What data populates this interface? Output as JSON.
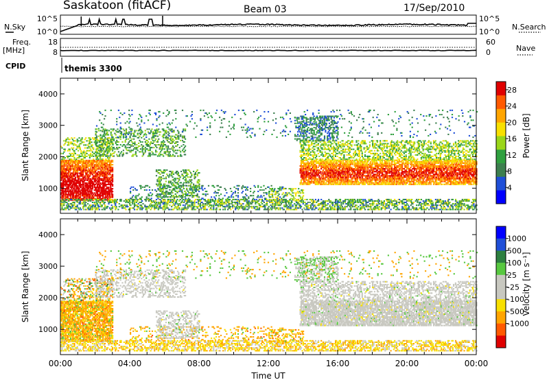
{
  "header": {
    "station": "Saskatoon (fitACF)",
    "beam": "Beam 03",
    "date": "17/Sep/2010"
  },
  "noise_panel": {
    "left_label": "N.Sky",
    "right_label": "N.Search",
    "tick_top": "10^5",
    "tick_bottom": "10^0"
  },
  "freq_panel": {
    "left_label_line1": "Freq.",
    "left_label_line2": "[MHz]",
    "right_label": "Nave",
    "left_ticks": [
      "18",
      "8"
    ],
    "right_ticks": [
      "60",
      "0"
    ]
  },
  "cpid": {
    "label": "CPID",
    "value": "themis 3300"
  },
  "colors": {
    "power": [
      "#0000ff",
      "#1f4fd8",
      "#3d7f4f",
      "#30a040",
      "#9ad61a",
      "#f8e000",
      "#ffa500",
      "#ff5a00",
      "#e00000"
    ],
    "velocity": [
      "#e00000",
      "#ff5a00",
      "#ffa500",
      "#f8e000",
      "#c8c8c0",
      "#c8c8c0",
      "#58c840",
      "#2d7f40",
      "#1f4fd8",
      "#0000ff"
    ]
  },
  "chart_data": [
    {
      "type": "heatmap",
      "name": "Power",
      "ylabel": "Slant Range [km]",
      "ylim": [
        200,
        4500
      ],
      "yticks": [
        "1000",
        "2000",
        "3000",
        "4000"
      ],
      "xlim": [
        0,
        24
      ],
      "colorbar": {
        "label": "Power [dB]",
        "ticks": [
          "4",
          "8",
          "12",
          "16",
          "20",
          "24",
          "28"
        ],
        "range": [
          0,
          30
        ]
      }
    },
    {
      "type": "heatmap",
      "name": "Velocity",
      "ylabel": "Slant Range [km]",
      "ylim": [
        200,
        4500
      ],
      "yticks": [
        "1000",
        "2000",
        "3000",
        "4000"
      ],
      "xlim": [
        0,
        24
      ],
      "xticks": [
        "00:00",
        "04:00",
        "08:00",
        "12:00",
        "16:00",
        "20:00",
        "00:00"
      ],
      "xlabel": "Time UT",
      "colorbar": {
        "label": "Velocity [m s⁻¹]",
        "ticks": [
          "1000",
          "500",
          "100",
          "25",
          "-25",
          "-100",
          "-500",
          "-1000"
        ]
      }
    }
  ]
}
